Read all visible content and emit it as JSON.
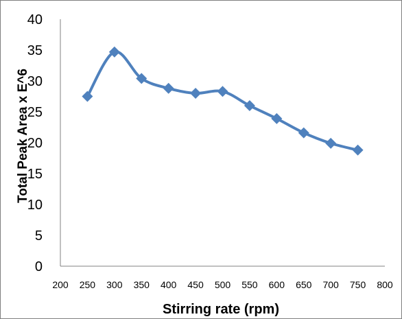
{
  "chart_data": {
    "type": "line",
    "title": "",
    "xlabel": "Stirring rate (rpm)",
    "ylabel": "Total Peak Area x E^6",
    "xlim": [
      200,
      800
    ],
    "ylim": [
      0,
      40
    ],
    "xticks": [
      200,
      250,
      300,
      350,
      400,
      450,
      500,
      550,
      600,
      650,
      700,
      750,
      800
    ],
    "yticks": [
      0,
      5,
      10,
      15,
      20,
      25,
      30,
      35,
      40
    ],
    "grid": false,
    "smooth": true,
    "marker": "diamond",
    "series_color": "#4f81bd",
    "series": [
      {
        "x": [
          250,
          300,
          350,
          400,
          450,
          500,
          550,
          600,
          650,
          700,
          750
        ],
        "y": [
          27.5,
          34.7,
          30.4,
          28.8,
          28.0,
          28.3,
          26.0,
          23.9,
          21.6,
          19.9,
          18.8
        ]
      }
    ]
  }
}
